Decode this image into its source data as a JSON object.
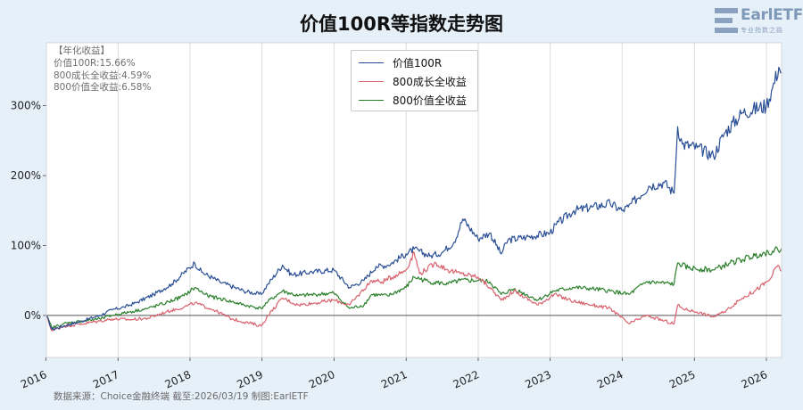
{
  "title": "价值100R等指数走势图",
  "logo": {
    "text": "EarlETF",
    "sub": "专业指数之路"
  },
  "stats_box": {
    "header": "【年化收益】",
    "lines": [
      "价值100R:15.66%",
      "800成长全收益:4.59%",
      "800价值全收益:6.58%"
    ]
  },
  "source_note": "数据来源：Choice金融终端 截至:2026/03/19 制图:EarlETF",
  "colors": {
    "background": "#e6f0f9",
    "plot_area": "#ffffff",
    "value100r": "#2a4f96",
    "growth800": "#d9626e",
    "value800": "#2a7f2a",
    "zero_line": "#555555",
    "grid": "#dcdcdc"
  },
  "chart_data": {
    "type": "line",
    "title": "价值100R等指数走势图",
    "xlabel": "",
    "ylabel": "",
    "x_range": [
      "2016-01-04",
      "2026-03-19"
    ],
    "ylim": [
      -60,
      390
    ],
    "y_unit": "%",
    "y_ticks": [
      0,
      100,
      200,
      300
    ],
    "y_tick_labels": [
      "0%",
      "100%",
      "200%",
      "300%"
    ],
    "x_tick_labels": [
      "2016",
      "2017",
      "2018",
      "2019",
      "2020",
      "2021",
      "2022",
      "2023",
      "2024",
      "2025",
      "2026"
    ],
    "grid": "vertical",
    "legend_position": "top-center",
    "series": [
      {
        "name": "价值100R",
        "points": [
          [
            "2016-01-04",
            0
          ],
          [
            "2016-02-01",
            -20
          ],
          [
            "2016-04-01",
            -15
          ],
          [
            "2016-07-01",
            -8
          ],
          [
            "2016-10-01",
            0
          ],
          [
            "2016-12-01",
            8
          ],
          [
            "2017-02-01",
            12
          ],
          [
            "2017-04-01",
            18
          ],
          [
            "2017-07-01",
            30
          ],
          [
            "2017-10-01",
            45
          ],
          [
            "2018-01-25",
            75
          ],
          [
            "2018-03-01",
            62
          ],
          [
            "2018-06-01",
            48
          ],
          [
            "2018-10-01",
            35
          ],
          [
            "2018-12-28",
            30
          ],
          [
            "2019-02-01",
            45
          ],
          [
            "2019-04-15",
            72
          ],
          [
            "2019-06-01",
            58
          ],
          [
            "2019-09-01",
            62
          ],
          [
            "2019-12-31",
            65
          ],
          [
            "2020-03-20",
            40
          ],
          [
            "2020-06-01",
            50
          ],
          [
            "2020-08-01",
            70
          ],
          [
            "2020-10-01",
            72
          ],
          [
            "2020-12-31",
            88
          ],
          [
            "2021-02-10",
            95
          ],
          [
            "2021-05-01",
            85
          ],
          [
            "2021-07-01",
            90
          ],
          [
            "2021-09-01",
            105
          ],
          [
            "2021-10-15",
            138
          ],
          [
            "2021-12-31",
            110
          ],
          [
            "2022-03-01",
            118
          ],
          [
            "2022-04-27",
            88
          ],
          [
            "2022-06-01",
            108
          ],
          [
            "2022-09-01",
            112
          ],
          [
            "2022-12-31",
            118
          ],
          [
            "2023-02-01",
            130
          ],
          [
            "2023-05-01",
            150
          ],
          [
            "2023-08-01",
            155
          ],
          [
            "2023-11-01",
            160
          ],
          [
            "2023-12-31",
            150
          ],
          [
            "2024-02-01",
            155
          ],
          [
            "2024-05-15",
            185
          ],
          [
            "2024-08-01",
            190
          ],
          [
            "2024-09-20",
            175
          ],
          [
            "2024-10-08",
            270
          ],
          [
            "2024-11-01",
            245
          ],
          [
            "2025-01-15",
            240
          ],
          [
            "2025-04-08",
            228
          ],
          [
            "2025-06-01",
            260
          ],
          [
            "2025-09-01",
            290
          ],
          [
            "2025-12-31",
            300
          ],
          [
            "2026-02-01",
            325
          ],
          [
            "2026-03-05",
            355
          ],
          [
            "2026-03-19",
            348
          ]
        ]
      },
      {
        "name": "800成长全收益",
        "points": [
          [
            "2016-01-04",
            0
          ],
          [
            "2016-02-01",
            -22
          ],
          [
            "2016-04-01",
            -15
          ],
          [
            "2016-07-01",
            -12
          ],
          [
            "2016-10-01",
            -8
          ],
          [
            "2016-12-01",
            -5
          ],
          [
            "2017-03-01",
            -6
          ],
          [
            "2017-06-01",
            -4
          ],
          [
            "2017-09-01",
            5
          ],
          [
            "2017-12-01",
            12
          ],
          [
            "2018-01-25",
            18
          ],
          [
            "2018-05-01",
            8
          ],
          [
            "2018-08-01",
            -5
          ],
          [
            "2018-12-28",
            -15
          ],
          [
            "2019-02-01",
            0
          ],
          [
            "2019-04-15",
            25
          ],
          [
            "2019-07-01",
            15
          ],
          [
            "2019-10-01",
            18
          ],
          [
            "2019-12-31",
            22
          ],
          [
            "2020-03-20",
            15
          ],
          [
            "2020-07-10",
            50
          ],
          [
            "2020-09-01",
            48
          ],
          [
            "2020-12-31",
            65
          ],
          [
            "2021-02-10",
            90
          ],
          [
            "2021-03-10",
            60
          ],
          [
            "2021-06-01",
            75
          ],
          [
            "2021-08-01",
            65
          ],
          [
            "2021-10-01",
            60
          ],
          [
            "2021-12-31",
            55
          ],
          [
            "2022-03-01",
            40
          ],
          [
            "2022-04-27",
            22
          ],
          [
            "2022-07-01",
            35
          ],
          [
            "2022-10-31",
            15
          ],
          [
            "2023-01-20",
            30
          ],
          [
            "2023-05-01",
            20
          ],
          [
            "2023-08-01",
            15
          ],
          [
            "2023-11-01",
            10
          ],
          [
            "2024-02-05",
            -12
          ],
          [
            "2024-05-01",
            0
          ],
          [
            "2024-09-20",
            -12
          ],
          [
            "2024-10-08",
            15
          ],
          [
            "2024-11-01",
            10
          ],
          [
            "2025-01-15",
            5
          ],
          [
            "2025-04-08",
            -2
          ],
          [
            "2025-06-01",
            5
          ],
          [
            "2025-09-01",
            25
          ],
          [
            "2025-11-01",
            35
          ],
          [
            "2026-01-15",
            50
          ],
          [
            "2026-03-01",
            72
          ],
          [
            "2026-03-19",
            63
          ]
        ]
      },
      {
        "name": "800价值全收益",
        "points": [
          [
            "2016-01-04",
            0
          ],
          [
            "2016-02-01",
            -18
          ],
          [
            "2016-04-01",
            -12
          ],
          [
            "2016-07-01",
            -8
          ],
          [
            "2016-10-01",
            -5
          ],
          [
            "2016-12-01",
            0
          ],
          [
            "2017-03-01",
            5
          ],
          [
            "2017-06-01",
            10
          ],
          [
            "2017-09-01",
            18
          ],
          [
            "2017-12-01",
            28
          ],
          [
            "2018-01-25",
            40
          ],
          [
            "2018-04-01",
            28
          ],
          [
            "2018-07-01",
            22
          ],
          [
            "2018-10-01",
            15
          ],
          [
            "2018-12-28",
            10
          ],
          [
            "2019-02-01",
            20
          ],
          [
            "2019-04-15",
            35
          ],
          [
            "2019-07-01",
            28
          ],
          [
            "2019-10-01",
            30
          ],
          [
            "2019-12-31",
            32
          ],
          [
            "2020-03-20",
            10
          ],
          [
            "2020-06-01",
            15
          ],
          [
            "2020-07-10",
            30
          ],
          [
            "2020-10-01",
            28
          ],
          [
            "2020-12-31",
            40
          ],
          [
            "2021-02-10",
            55
          ],
          [
            "2021-05-01",
            48
          ],
          [
            "2021-08-01",
            45
          ],
          [
            "2021-10-01",
            50
          ],
          [
            "2021-12-31",
            50
          ],
          [
            "2022-03-01",
            48
          ],
          [
            "2022-04-27",
            30
          ],
          [
            "2022-07-01",
            38
          ],
          [
            "2022-10-31",
            22
          ],
          [
            "2023-01-20",
            35
          ],
          [
            "2023-05-01",
            40
          ],
          [
            "2023-08-01",
            38
          ],
          [
            "2023-11-01",
            35
          ],
          [
            "2024-02-05",
            30
          ],
          [
            "2024-05-01",
            48
          ],
          [
            "2024-09-20",
            45
          ],
          [
            "2024-10-08",
            75
          ],
          [
            "2024-12-01",
            68
          ],
          [
            "2025-04-08",
            65
          ],
          [
            "2025-07-01",
            75
          ],
          [
            "2025-09-01",
            80
          ],
          [
            "2025-12-01",
            88
          ],
          [
            "2026-02-01",
            92
          ],
          [
            "2026-03-19",
            96
          ]
        ]
      }
    ]
  }
}
